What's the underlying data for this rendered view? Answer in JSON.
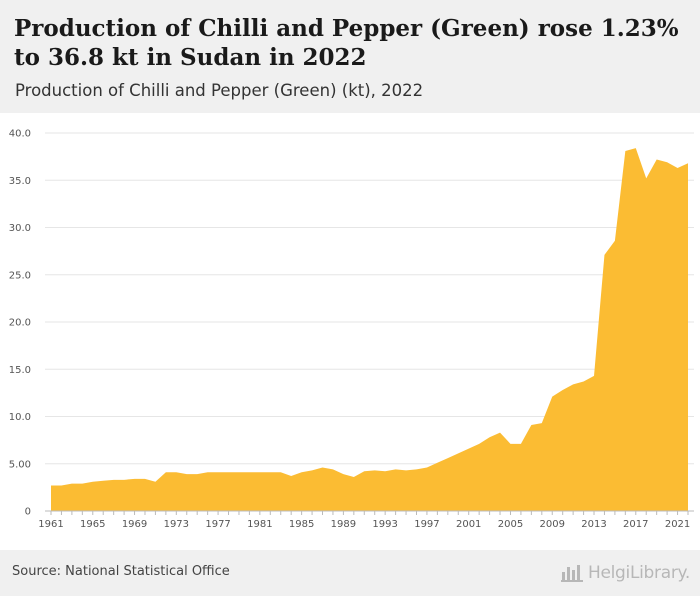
{
  "header": {
    "title": "Production of Chilli and Pepper (Green) rose 1.23% to 36.8 kt in Sudan in 2022",
    "subtitle": "Production of Chilli and Pepper (Green) (kt), 2022"
  },
  "footer": {
    "source": "Source: National Statistical Office",
    "logo": "HelgiLibrary."
  },
  "colors": {
    "area": "#fbbc33",
    "grid": "#e6e6e6",
    "axis": "#bbbbbb"
  },
  "chart_data": {
    "type": "area",
    "title": "Production of Chilli and Pepper (Green) (kt), 2022",
    "xlabel": "",
    "ylabel": "",
    "ylim": [
      0,
      40
    ],
    "xlim": [
      1961,
      2022
    ],
    "grid": true,
    "legend": "none",
    "y_ticks": [
      0,
      5,
      10,
      15,
      20,
      25,
      30,
      35,
      40
    ],
    "y_tick_labels": [
      "0",
      "5.00",
      "10.0",
      "15.0",
      "20.0",
      "25.0",
      "30.0",
      "35.0",
      "40.0"
    ],
    "x_ticks": [
      1961,
      1965,
      1969,
      1973,
      1977,
      1981,
      1985,
      1989,
      1993,
      1997,
      2001,
      2005,
      2009,
      2013,
      2017,
      2021
    ],
    "series": [
      {
        "x": [
          1961,
          1962,
          1963,
          1964,
          1965,
          1966,
          1967,
          1968,
          1969,
          1970,
          1971,
          1972,
          1973,
          1974,
          1975,
          1976,
          1977,
          1978,
          1979,
          1980,
          1981,
          1982,
          1983,
          1984,
          1985,
          1986,
          1987,
          1988,
          1989,
          1990,
          1991,
          1992,
          1993,
          1994,
          1995,
          1996,
          1997,
          1998,
          1999,
          2000,
          2001,
          2002,
          2003,
          2004,
          2005,
          2006,
          2007,
          2008,
          2009,
          2010,
          2011,
          2012,
          2013,
          2014,
          2015,
          2016,
          2017,
          2018,
          2019,
          2020,
          2021,
          2022
        ],
        "values": [
          2.7,
          2.7,
          2.9,
          2.9,
          3.1,
          3.2,
          3.3,
          3.3,
          3.4,
          3.4,
          3.1,
          4.1,
          4.1,
          3.9,
          3.9,
          4.1,
          4.1,
          4.1,
          4.1,
          4.1,
          4.1,
          4.1,
          4.1,
          3.7,
          4.1,
          4.3,
          4.6,
          4.4,
          3.9,
          3.6,
          4.2,
          4.3,
          4.2,
          4.4,
          4.3,
          4.4,
          4.6,
          5.1,
          5.6,
          6.1,
          6.6,
          7.1,
          7.8,
          8.3,
          7.1,
          7.1,
          9.1,
          9.3,
          12.1,
          12.8,
          13.4,
          13.7,
          14.3,
          27.1,
          28.6,
          38.1,
          38.4,
          35.2,
          37.2,
          36.9,
          36.3,
          36.8
        ]
      }
    ]
  }
}
